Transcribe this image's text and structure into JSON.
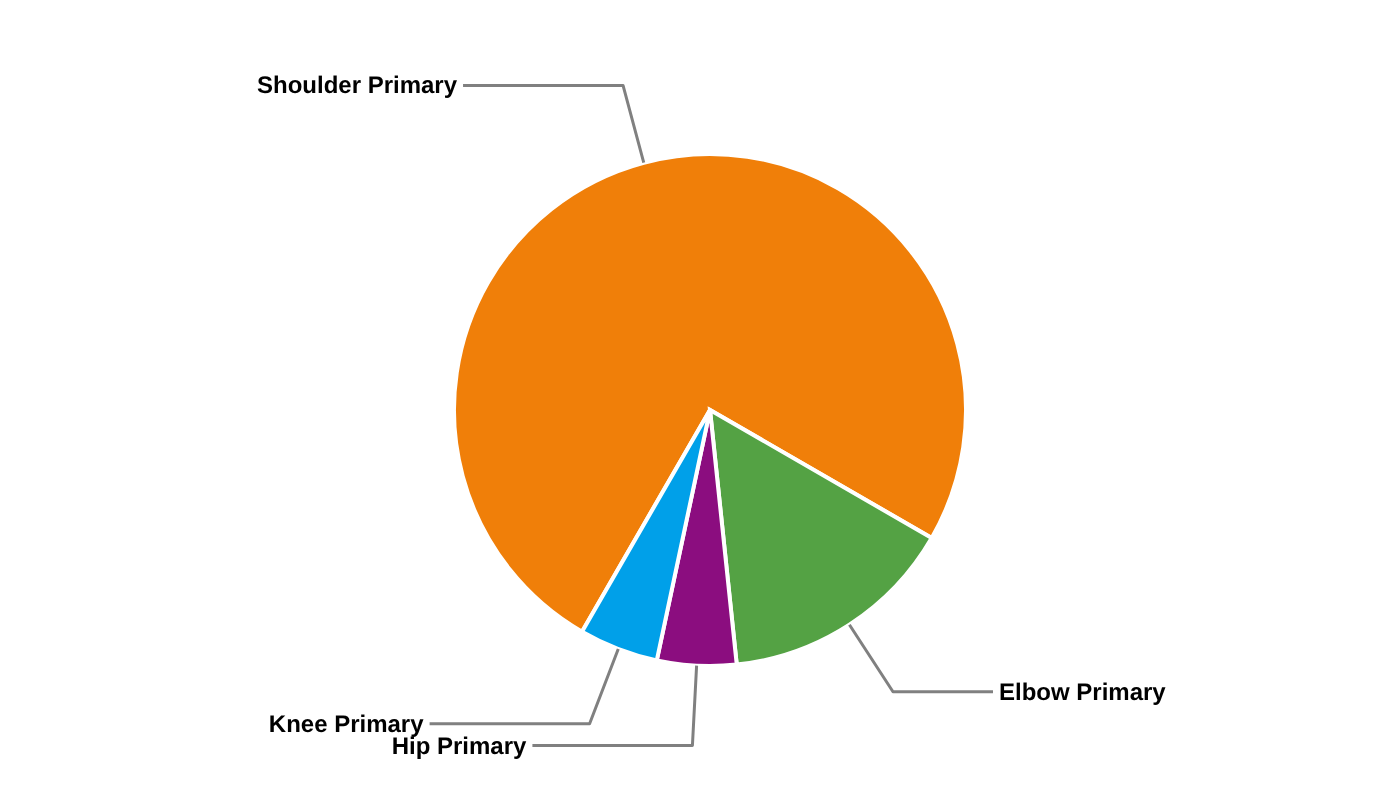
{
  "chart_data": {
    "type": "pie",
    "categories": [
      "Shoulder Primary",
      "Elbow Primary",
      "Hip Primary",
      "Knee Primary"
    ],
    "values": [
      75,
      15,
      5,
      5
    ],
    "colors": [
      "#f07f09",
      "#54a244",
      "#8b0d7f",
      "#00a0e9"
    ],
    "legend": false
  }
}
